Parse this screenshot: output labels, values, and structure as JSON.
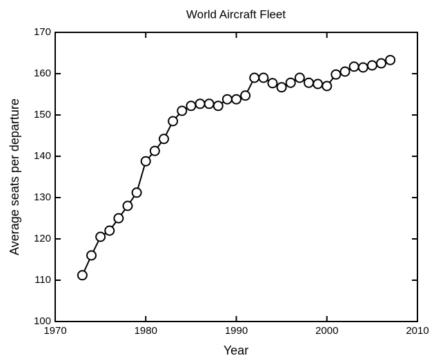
{
  "chart_data": {
    "type": "line",
    "title": "World Aircraft Fleet",
    "x_label": "Year",
    "y_label": "Average seats per departure",
    "x": [
      1973,
      1974,
      1975,
      1976,
      1977,
      1978,
      1979,
      1980,
      1981,
      1982,
      1983,
      1984,
      1985,
      1986,
      1987,
      1988,
      1989,
      1990,
      1991,
      1992,
      1993,
      1994,
      1995,
      1996,
      1997,
      1998,
      1999,
      2000,
      2001,
      2002,
      2003,
      2004,
      2005,
      2006,
      2007
    ],
    "series": [
      {
        "color": "#000000",
        "values": [
          111.2,
          116,
          120.5,
          122,
          125,
          128,
          131.2,
          138.8,
          141.3,
          144.2,
          148.5,
          151,
          152.2,
          152.7,
          152.7,
          152.2,
          153.8,
          153.8,
          154.7,
          159,
          159,
          157.7,
          156.7,
          157.8,
          159,
          157.8,
          157.5,
          157,
          159.8,
          160.5,
          161.7,
          161.5,
          162,
          162.5,
          163.3
        ]
      }
    ],
    "xlim": [
      1970,
      2010
    ],
    "xticks": [
      1970,
      1980,
      1990,
      2000,
      2010
    ],
    "ylim": [
      100,
      170
    ],
    "yticks": [
      100,
      110,
      120,
      130,
      140,
      150,
      160,
      170
    ]
  }
}
